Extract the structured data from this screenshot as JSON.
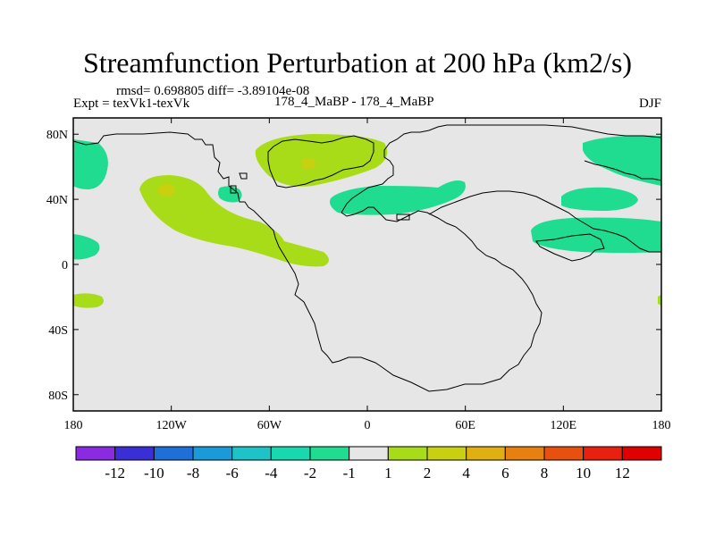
{
  "chart_data": {
    "type": "contour-map",
    "title": "Streamfunction Perturbation at 200 hPa (km2/s)",
    "stats": "rmsd= 0.698805 diff= -3.89104e-08",
    "left_label": "Expt = texVk1-texVk",
    "center_label": "178_4_MaBP - 178_4_MaBP",
    "right_label": "DJF",
    "x_ticks": [
      "180",
      "120W",
      "60W",
      "0",
      "60E",
      "120E",
      "180"
    ],
    "x_tick_values": [
      -180,
      -120,
      -60,
      0,
      60,
      120,
      180
    ],
    "y_ticks": [
      "80N",
      "40N",
      "0",
      "40S",
      "80S"
    ],
    "y_tick_values": [
      80,
      40,
      0,
      -40,
      -80
    ],
    "xlim": [
      -180,
      180
    ],
    "ylim": [
      -90,
      90
    ],
    "colorbar": {
      "labels": [
        "-12",
        "-10",
        "-8",
        "-6",
        "-4",
        "-2",
        "-1",
        "1",
        "2",
        "4",
        "6",
        "8",
        "10",
        "12"
      ],
      "colors": [
        "#8a2be2",
        "#3a2fd6",
        "#1e6fd8",
        "#1a9bd8",
        "#1ec3c8",
        "#18d8b0",
        "#20dc90",
        "#e6e6e6",
        "#a8dc18",
        "#c8d010",
        "#e0b010",
        "#e88010",
        "#e85010",
        "#e82010",
        "#e00000"
      ]
    },
    "background_color": "#e6e6e6",
    "regions": [
      {
        "name": "negative-anomaly-west-pacific-north",
        "level": "-2 to -1",
        "color": "#20dc90",
        "lon": -168,
        "lat": 58
      },
      {
        "name": "negative-anomaly-east-pacific-equator",
        "level": "-2 to -1",
        "color": "#20dc90",
        "lon": -172,
        "lat": 12
      },
      {
        "name": "negative-anomaly-north-america",
        "level": "-2 to -1",
        "color": "#20dc90",
        "lon": -83,
        "lat": 43
      },
      {
        "name": "negative-anomaly-europe",
        "level": "-2 to -1",
        "color": "#20dc90",
        "lon": 28,
        "lat": 40
      },
      {
        "name": "negative-anomaly-asia-east",
        "level": "-2 to -1",
        "color": "#20dc90",
        "lon": 155,
        "lat": 20
      },
      {
        "name": "negative-anomaly-siberia-north",
        "level": "-2 to -1",
        "color": "#20dc90",
        "lon": 160,
        "lat": 62
      },
      {
        "name": "negative-anomaly-japan",
        "level": "-2 to -1",
        "color": "#20dc90",
        "lon": 140,
        "lat": 40
      },
      {
        "name": "positive-anomaly-pacific",
        "level": "1 to 2",
        "color": "#a8dc18",
        "lon": -110,
        "lat": 22
      },
      {
        "name": "positive-anomaly-pacific-core",
        "level": "2 to 4",
        "color": "#c8d010",
        "lon": -122,
        "lat": 45
      },
      {
        "name": "positive-anomaly-greenland",
        "level": "1 to 2",
        "color": "#a8dc18",
        "lon": -35,
        "lat": 68
      },
      {
        "name": "positive-anomaly-greenland-core",
        "level": "2 to 4",
        "color": "#c8d010",
        "lon": -36,
        "lat": 60
      },
      {
        "name": "positive-anomaly-south-pacific",
        "level": "1 to 2",
        "color": "#a8dc18",
        "lon": -166,
        "lat": -23
      },
      {
        "name": "positive-anomaly-date-line-south",
        "level": "1 to 2",
        "color": "#a8dc18",
        "lon": 180,
        "lat": -22
      }
    ]
  }
}
